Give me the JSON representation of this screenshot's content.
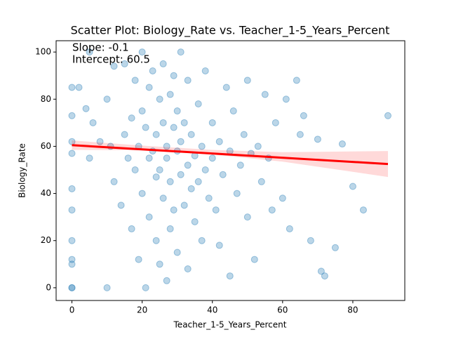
{
  "chart_data": {
    "type": "scatter",
    "title": "Scatter Plot: Biology_Rate vs. Teacher_1-5_Years_Percent",
    "x_label": "Teacher_1-5_Years_Percent",
    "y_label": "Biology_Rate",
    "annotations": [
      "Slope: -0.1",
      "Intercept: 60.5"
    ],
    "color": "#1f77b4",
    "x": [
      0,
      0,
      0,
      0,
      0,
      0,
      0,
      0,
      0,
      0,
      0,
      2,
      4,
      5,
      6,
      8,
      10,
      10,
      11,
      12,
      14,
      15,
      15,
      16,
      17,
      17,
      18,
      18,
      19,
      19,
      20,
      20,
      20,
      21,
      21,
      22,
      22,
      22,
      23,
      23,
      24,
      24,
      24,
      25,
      25,
      25,
      26,
      26,
      26,
      27,
      27,
      27,
      28,
      28,
      28,
      29,
      29,
      29,
      30,
      30,
      30,
      31,
      31,
      31,
      32,
      32,
      33,
      33,
      33,
      34,
      34,
      35,
      35,
      36,
      36,
      37,
      37,
      38,
      38,
      39,
      40,
      40,
      41,
      42,
      42,
      43,
      44,
      45,
      45,
      46,
      47,
      48,
      49,
      50,
      50,
      51,
      52,
      53,
      54,
      55,
      56,
      57,
      58,
      60,
      61,
      62,
      64,
      65,
      66,
      68,
      70,
      71,
      72,
      75,
      77,
      80,
      83,
      90,
      5,
      12
    ],
    "values": [
      0,
      0,
      10,
      12,
      20,
      33,
      42,
      57,
      62,
      73,
      85,
      85,
      76,
      55,
      70,
      62,
      80,
      0,
      60,
      45,
      35,
      95,
      65,
      55,
      72,
      25,
      88,
      50,
      12,
      60,
      100,
      75,
      40,
      0,
      68,
      85,
      30,
      55,
      58,
      92,
      20,
      65,
      47,
      80,
      50,
      10,
      70,
      38,
      95,
      60,
      3,
      55,
      45,
      82,
      25,
      68,
      33,
      90,
      58,
      15,
      75,
      48,
      62,
      100,
      35,
      70,
      52,
      8,
      88,
      42,
      65,
      56,
      28,
      78,
      45,
      60,
      20,
      92,
      50,
      38,
      70,
      55,
      33,
      62,
      18,
      48,
      85,
      58,
      5,
      75,
      40,
      52,
      65,
      30,
      88,
      57,
      12,
      60,
      45,
      82,
      55,
      33,
      70,
      38,
      80,
      25,
      88,
      65,
      73,
      20,
      63,
      7,
      5,
      17,
      61,
      43,
      33,
      73,
      100,
      94
    ],
    "fit": {
      "color": "#ff0000",
      "x": [
        0,
        90
      ],
      "y": [
        60.5,
        52.5
      ],
      "band_x": [
        0,
        20,
        40,
        60,
        90
      ],
      "band_lower": [
        58.5,
        58.3,
        56.5,
        53.5,
        47
      ],
      "band_upper": [
        62.5,
        60.3,
        58.5,
        57.5,
        58
      ]
    },
    "xlim": [
      -4.5,
      94.8
    ],
    "ylim": [
      -5.4,
      104.8
    ],
    "xticks": [
      0,
      20,
      40,
      60,
      80
    ],
    "yticks": [
      0,
      20,
      40,
      60,
      80,
      100
    ]
  }
}
